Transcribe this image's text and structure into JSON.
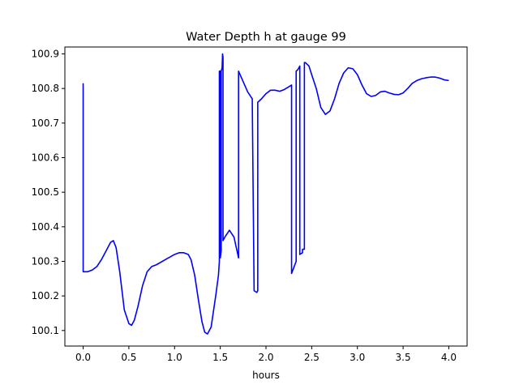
{
  "chart_data": {
    "type": "line",
    "title": "Water Depth h at gauge 99",
    "xlabel": "hours",
    "ylabel": "",
    "xlim": [
      -0.2,
      4.2
    ],
    "ylim": [
      100.055,
      100.92
    ],
    "xticks": [
      0.0,
      0.5,
      1.0,
      1.5,
      2.0,
      2.5,
      3.0,
      3.5,
      4.0
    ],
    "xtick_labels": [
      "0.0",
      "0.5",
      "1.0",
      "1.5",
      "2.0",
      "2.5",
      "3.0",
      "3.5",
      "4.0"
    ],
    "yticks": [
      100.1,
      100.2,
      100.3,
      100.4,
      100.5,
      100.6,
      100.7,
      100.8,
      100.9
    ],
    "ytick_labels": [
      "100.1",
      "100.2",
      "100.3",
      "100.4",
      "100.5",
      "100.6",
      "100.7",
      "100.8",
      "100.9"
    ],
    "grid": false,
    "series": [
      {
        "color": "#0000ff",
        "x": [
          0.0,
          0.0,
          0.05,
          0.1,
          0.15,
          0.2,
          0.25,
          0.3,
          0.33,
          0.36,
          0.4,
          0.45,
          0.5,
          0.53,
          0.56,
          0.6,
          0.65,
          0.7,
          0.75,
          0.8,
          0.9,
          1.0,
          1.05,
          1.1,
          1.15,
          1.18,
          1.22,
          1.26,
          1.3,
          1.33,
          1.36,
          1.4,
          1.45,
          1.48,
          1.49,
          1.49,
          1.5,
          1.5,
          1.51,
          1.51,
          1.52,
          1.525,
          1.53,
          1.53,
          1.55,
          1.6,
          1.65,
          1.7,
          1.7,
          1.75,
          1.8,
          1.85,
          1.85,
          1.87,
          1.9,
          1.91,
          1.91,
          1.95,
          2.0,
          2.05,
          2.1,
          2.15,
          2.2,
          2.25,
          2.28,
          2.28,
          2.33,
          2.33,
          2.35,
          2.37,
          2.37,
          2.4,
          2.4,
          2.42,
          2.42,
          2.43,
          2.47,
          2.5,
          2.55,
          2.6,
          2.65,
          2.7,
          2.75,
          2.8,
          2.85,
          2.9,
          2.95,
          3.0,
          3.05,
          3.1,
          3.15,
          3.2,
          3.25,
          3.3,
          3.35,
          3.4,
          3.45,
          3.5,
          3.55,
          3.6,
          3.65,
          3.7,
          3.75,
          3.8,
          3.85,
          3.9,
          3.95,
          4.0
        ],
        "values": [
          100.815,
          100.27,
          100.27,
          100.275,
          100.285,
          100.305,
          100.33,
          100.355,
          100.36,
          100.34,
          100.27,
          100.16,
          100.12,
          100.115,
          100.13,
          100.17,
          100.23,
          100.27,
          100.285,
          100.29,
          100.305,
          100.32,
          100.325,
          100.325,
          100.32,
          100.305,
          100.26,
          100.19,
          100.125,
          100.095,
          100.09,
          100.11,
          100.2,
          100.26,
          100.3,
          100.85,
          100.85,
          100.31,
          100.33,
          100.85,
          100.86,
          100.9,
          100.89,
          100.36,
          100.37,
          100.39,
          100.37,
          100.31,
          100.85,
          100.82,
          100.79,
          100.77,
          100.76,
          100.215,
          100.21,
          100.215,
          100.76,
          100.77,
          100.785,
          100.795,
          100.795,
          100.792,
          100.797,
          100.805,
          100.81,
          100.265,
          100.3,
          100.85,
          100.855,
          100.865,
          100.32,
          100.325,
          100.335,
          100.335,
          100.875,
          100.875,
          100.865,
          100.84,
          100.8,
          100.745,
          100.725,
          100.735,
          100.77,
          100.815,
          100.845,
          100.86,
          100.857,
          100.84,
          100.81,
          100.785,
          100.777,
          100.78,
          100.79,
          100.792,
          100.787,
          100.783,
          100.782,
          100.787,
          100.8,
          100.815,
          100.823,
          100.828,
          100.831,
          100.833,
          100.833,
          100.83,
          100.825,
          100.823
        ]
      }
    ]
  }
}
